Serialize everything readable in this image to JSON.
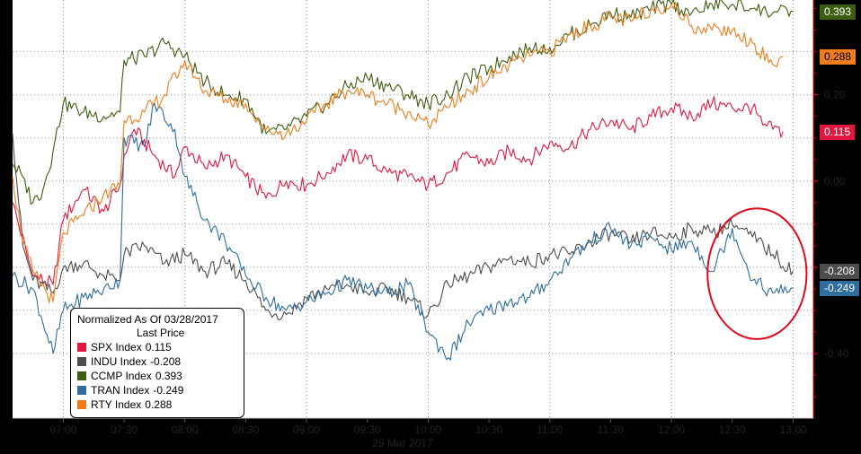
{
  "colors": {
    "background": "#000000",
    "plot_background": "#ffffff",
    "grid": "#8a8a8a",
    "axis_red": "#e3071b",
    "annotation_circle": "#e3071b"
  },
  "legend": {
    "title": "Normalized As Of 03/28/2017",
    "subtitle": "Last Price"
  },
  "chart_data": {
    "type": "line",
    "xlabel": "29 Mar 2017",
    "x_ticks": [
      "07:00",
      "07:30",
      "08:00",
      "08:30",
      "09:00",
      "09:30",
      "10:00",
      "10:30",
      "11:00",
      "11:30",
      "12:00",
      "12:30",
      "13:00"
    ],
    "xlim": [
      "06:35",
      "13:10"
    ],
    "y_ticks": [
      0.2,
      0.0,
      -0.2,
      -0.4
    ],
    "y_tick_labels": [
      "0.20",
      "0.00",
      "-0.20",
      "-0.40"
    ],
    "ylim": [
      -0.55,
      0.42
    ],
    "grid": true,
    "legend_position": "bottom-left",
    "annotation": "red ellipse around 12:30–12:55 drop",
    "series": [
      {
        "name": "SPX Index",
        "last_price": "0.115",
        "color": "#e3173e",
        "start": "06:35",
        "end": "12:55",
        "points": [
          [
            "06:35",
            -0.05
          ],
          [
            "06:45",
            -0.22
          ],
          [
            "06:55",
            -0.24
          ],
          [
            "07:00",
            -0.09
          ],
          [
            "07:10",
            -0.02
          ],
          [
            "07:20",
            -0.07
          ],
          [
            "07:28",
            -0.01
          ],
          [
            "07:30",
            0.06
          ],
          [
            "07:35",
            0.12
          ],
          [
            "07:45",
            0.06
          ],
          [
            "07:55",
            0.01
          ],
          [
            "08:00",
            0.08
          ],
          [
            "08:10",
            0.03
          ],
          [
            "08:20",
            0.06
          ],
          [
            "08:30",
            0.01
          ],
          [
            "08:40",
            -0.04
          ],
          [
            "08:50",
            0.0
          ],
          [
            "09:00",
            -0.01
          ],
          [
            "09:10",
            0.02
          ],
          [
            "09:20",
            0.06
          ],
          [
            "09:30",
            0.05
          ],
          [
            "09:40",
            0.02
          ],
          [
            "09:50",
            0.01
          ],
          [
            "10:00",
            -0.01
          ],
          [
            "10:10",
            0.02
          ],
          [
            "10:20",
            0.06
          ],
          [
            "10:30",
            0.04
          ],
          [
            "10:40",
            0.07
          ],
          [
            "10:50",
            0.05
          ],
          [
            "11:00",
            0.09
          ],
          [
            "11:10",
            0.08
          ],
          [
            "11:20",
            0.12
          ],
          [
            "11:30",
            0.14
          ],
          [
            "11:40",
            0.12
          ],
          [
            "11:50",
            0.15
          ],
          [
            "12:00",
            0.17
          ],
          [
            "12:10",
            0.15
          ],
          [
            "12:20",
            0.18
          ],
          [
            "12:30",
            0.17
          ],
          [
            "12:40",
            0.17
          ],
          [
            "12:45",
            0.13
          ],
          [
            "12:50",
            0.12
          ],
          [
            "12:55",
            0.115
          ]
        ]
      },
      {
        "name": "INDU Index",
        "last_price": "-0.208",
        "color": "#4d4d4d",
        "start": "06:35",
        "end": "13:00",
        "points": [
          [
            "06:35",
            0.11
          ],
          [
            "06:40",
            -0.15
          ],
          [
            "06:45",
            -0.23
          ],
          [
            "06:55",
            -0.26
          ],
          [
            "07:00",
            -0.2
          ],
          [
            "07:10",
            -0.19
          ],
          [
            "07:20",
            -0.22
          ],
          [
            "07:28",
            -0.23
          ],
          [
            "07:30",
            -0.17
          ],
          [
            "07:40",
            -0.15
          ],
          [
            "07:50",
            -0.19
          ],
          [
            "08:00",
            -0.17
          ],
          [
            "08:10",
            -0.21
          ],
          [
            "08:20",
            -0.19
          ],
          [
            "08:30",
            -0.23
          ],
          [
            "08:40",
            -0.3
          ],
          [
            "08:50",
            -0.31
          ],
          [
            "09:00",
            -0.27
          ],
          [
            "09:10",
            -0.25
          ],
          [
            "09:20",
            -0.24
          ],
          [
            "09:30",
            -0.26
          ],
          [
            "09:40",
            -0.25
          ],
          [
            "09:50",
            -0.27
          ],
          [
            "10:00",
            -0.31
          ],
          [
            "10:10",
            -0.24
          ],
          [
            "10:20",
            -0.22
          ],
          [
            "10:30",
            -0.2
          ],
          [
            "10:40",
            -0.18
          ],
          [
            "10:50",
            -0.19
          ],
          [
            "11:00",
            -0.17
          ],
          [
            "11:10",
            -0.17
          ],
          [
            "11:20",
            -0.14
          ],
          [
            "11:30",
            -0.12
          ],
          [
            "11:40",
            -0.14
          ],
          [
            "11:50",
            -0.12
          ],
          [
            "12:00",
            -0.13
          ],
          [
            "12:10",
            -0.11
          ],
          [
            "12:20",
            -0.12
          ],
          [
            "12:30",
            -0.1
          ],
          [
            "12:40",
            -0.13
          ],
          [
            "12:50",
            -0.17
          ],
          [
            "13:00",
            -0.208
          ]
        ]
      },
      {
        "name": "CCMP Index",
        "last_price": "0.393",
        "color": "#3d5e10",
        "start": "06:35",
        "end": "13:00",
        "points": [
          [
            "06:35",
            0.04
          ],
          [
            "06:40",
            0.01
          ],
          [
            "06:45",
            -0.05
          ],
          [
            "06:50",
            -0.02
          ],
          [
            "06:55",
            0.07
          ],
          [
            "07:00",
            0.18
          ],
          [
            "07:10",
            0.16
          ],
          [
            "07:20",
            0.15
          ],
          [
            "07:28",
            0.16
          ],
          [
            "07:30",
            0.28
          ],
          [
            "07:40",
            0.29
          ],
          [
            "07:50",
            0.32
          ],
          [
            "08:00",
            0.29
          ],
          [
            "08:10",
            0.23
          ],
          [
            "08:20",
            0.2
          ],
          [
            "08:30",
            0.19
          ],
          [
            "08:40",
            0.11
          ],
          [
            "08:50",
            0.12
          ],
          [
            "09:00",
            0.15
          ],
          [
            "09:10",
            0.18
          ],
          [
            "09:20",
            0.22
          ],
          [
            "09:30",
            0.24
          ],
          [
            "09:40",
            0.22
          ],
          [
            "09:50",
            0.2
          ],
          [
            "10:00",
            0.18
          ],
          [
            "10:10",
            0.2
          ],
          [
            "10:20",
            0.24
          ],
          [
            "10:30",
            0.26
          ],
          [
            "10:40",
            0.29
          ],
          [
            "10:50",
            0.31
          ],
          [
            "11:00",
            0.31
          ],
          [
            "11:10",
            0.34
          ],
          [
            "11:20",
            0.36
          ],
          [
            "11:30",
            0.39
          ],
          [
            "11:40",
            0.38
          ],
          [
            "11:50",
            0.4
          ],
          [
            "12:00",
            0.41
          ],
          [
            "12:10",
            0.39
          ],
          [
            "12:20",
            0.41
          ],
          [
            "12:30",
            0.41
          ],
          [
            "12:40",
            0.4
          ],
          [
            "12:50",
            0.39
          ],
          [
            "13:00",
            0.393
          ]
        ]
      },
      {
        "name": "TRAN Index",
        "last_price": "-0.249",
        "color": "#2e6d9e",
        "start": "06:35",
        "end": "13:00",
        "points": [
          [
            "06:35",
            -0.22
          ],
          [
            "06:45",
            -0.25
          ],
          [
            "06:55",
            -0.4
          ],
          [
            "07:00",
            -0.3
          ],
          [
            "07:10",
            -0.27
          ],
          [
            "07:20",
            -0.25
          ],
          [
            "07:28",
            -0.23
          ],
          [
            "07:30",
            0.1
          ],
          [
            "07:40",
            0.08
          ],
          [
            "07:45",
            0.18
          ],
          [
            "07:55",
            0.12
          ],
          [
            "08:00",
            0.01
          ],
          [
            "08:10",
            -0.09
          ],
          [
            "08:20",
            -0.14
          ],
          [
            "08:30",
            -0.22
          ],
          [
            "08:40",
            -0.27
          ],
          [
            "08:50",
            -0.3
          ],
          [
            "09:00",
            -0.28
          ],
          [
            "09:10",
            -0.26
          ],
          [
            "09:20",
            -0.23
          ],
          [
            "09:30",
            -0.25
          ],
          [
            "09:40",
            -0.26
          ],
          [
            "09:50",
            -0.24
          ],
          [
            "10:00",
            -0.35
          ],
          [
            "10:10",
            -0.41
          ],
          [
            "10:20",
            -0.33
          ],
          [
            "10:30",
            -0.3
          ],
          [
            "10:40",
            -0.28
          ],
          [
            "10:50",
            -0.27
          ],
          [
            "11:00",
            -0.23
          ],
          [
            "11:10",
            -0.18
          ],
          [
            "11:20",
            -0.14
          ],
          [
            "11:30",
            -0.11
          ],
          [
            "11:40",
            -0.15
          ],
          [
            "11:50",
            -0.13
          ],
          [
            "12:00",
            -0.16
          ],
          [
            "12:10",
            -0.14
          ],
          [
            "12:20",
            -0.21
          ],
          [
            "12:30",
            -0.11
          ],
          [
            "12:40",
            -0.23
          ],
          [
            "12:50",
            -0.26
          ],
          [
            "13:00",
            -0.249
          ]
        ]
      },
      {
        "name": "RTY Index",
        "last_price": "0.288",
        "color": "#ef7d1d",
        "start": "06:35",
        "end": "12:55",
        "points": [
          [
            "06:35",
            0.01
          ],
          [
            "06:40",
            -0.14
          ],
          [
            "06:45",
            -0.21
          ],
          [
            "06:55",
            -0.28
          ],
          [
            "07:00",
            -0.12
          ],
          [
            "07:10",
            -0.08
          ],
          [
            "07:20",
            -0.03
          ],
          [
            "07:28",
            -0.01
          ],
          [
            "07:30",
            0.14
          ],
          [
            "07:40",
            0.16
          ],
          [
            "07:50",
            0.2
          ],
          [
            "08:00",
            0.28
          ],
          [
            "08:10",
            0.21
          ],
          [
            "08:20",
            0.19
          ],
          [
            "08:30",
            0.18
          ],
          [
            "08:40",
            0.12
          ],
          [
            "08:50",
            0.11
          ],
          [
            "09:00",
            0.14
          ],
          [
            "09:10",
            0.18
          ],
          [
            "09:20",
            0.21
          ],
          [
            "09:30",
            0.2
          ],
          [
            "09:40",
            0.18
          ],
          [
            "09:50",
            0.16
          ],
          [
            "10:00",
            0.13
          ],
          [
            "10:10",
            0.17
          ],
          [
            "10:20",
            0.21
          ],
          [
            "10:30",
            0.24
          ],
          [
            "10:40",
            0.27
          ],
          [
            "10:50",
            0.29
          ],
          [
            "11:00",
            0.3
          ],
          [
            "11:10",
            0.34
          ],
          [
            "11:20",
            0.36
          ],
          [
            "11:30",
            0.38
          ],
          [
            "11:40",
            0.37
          ],
          [
            "11:50",
            0.4
          ],
          [
            "12:00",
            0.41
          ],
          [
            "12:10",
            0.36
          ],
          [
            "12:20",
            0.35
          ],
          [
            "12:30",
            0.35
          ],
          [
            "12:40",
            0.32
          ],
          [
            "12:50",
            0.27
          ],
          [
            "12:55",
            0.288
          ]
        ]
      }
    ]
  }
}
